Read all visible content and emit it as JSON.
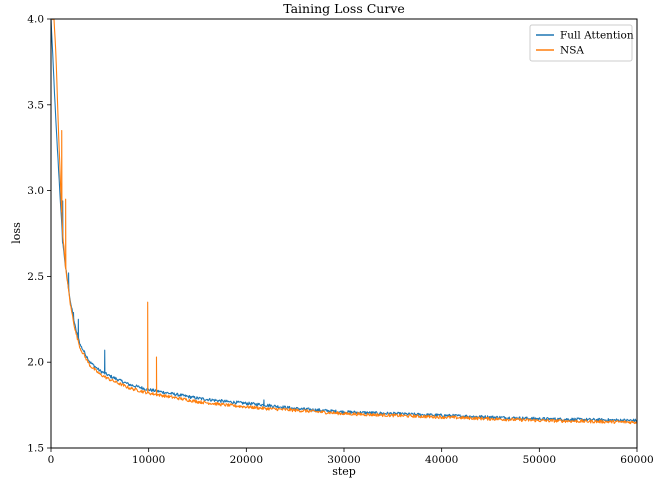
{
  "chart_data": {
    "type": "line",
    "title": "Taining Loss Curve",
    "xlabel": "step",
    "ylabel": "loss",
    "xlim": [
      0,
      60000
    ],
    "ylim": [
      1.5,
      4.0
    ],
    "xticks": [
      0,
      10000,
      20000,
      30000,
      40000,
      50000,
      60000
    ],
    "xtick_labels": [
      "0",
      "10000",
      "20000",
      "30000",
      "40000",
      "50000",
      "60000"
    ],
    "yticks": [
      1.5,
      2.0,
      2.5,
      3.0,
      3.5,
      4.0
    ],
    "ytick_labels": [
      "1.5",
      "2.0",
      "2.5",
      "3.0",
      "3.5",
      "4.0"
    ],
    "grid": false,
    "legend_position": "top-right",
    "series": [
      {
        "name": "Full Attention",
        "color": "#1f77b4",
        "x": [
          0,
          500,
          1000,
          1200,
          1500,
          2000,
          2500,
          3000,
          4000,
          5000,
          6000,
          8000,
          10000,
          12000,
          15000,
          18000,
          20000,
          22000,
          25000,
          30000,
          35000,
          40000,
          45000,
          50000,
          55000,
          60000
        ],
        "y": [
          4.0,
          3.4,
          2.9,
          2.7,
          2.55,
          2.35,
          2.2,
          2.1,
          2.0,
          1.95,
          1.92,
          1.87,
          1.84,
          1.82,
          1.79,
          1.77,
          1.76,
          1.75,
          1.73,
          1.71,
          1.7,
          1.69,
          1.68,
          1.67,
          1.665,
          1.66
        ],
        "spikes": [
          [
            1200,
            2.94
          ],
          [
            1800,
            2.52
          ],
          [
            2300,
            2.29
          ],
          [
            2800,
            2.25
          ],
          [
            5500,
            2.07
          ],
          [
            21800,
            1.78
          ]
        ]
      },
      {
        "name": "NSA",
        "color": "#ff7f0e",
        "x": [
          0,
          300,
          500,
          800,
          1000,
          1200,
          1500,
          2000,
          2500,
          3000,
          4000,
          5000,
          6000,
          8000,
          10000,
          12000,
          15000,
          18000,
          20000,
          22000,
          25000,
          30000,
          35000,
          40000,
          45000,
          50000,
          55000,
          60000
        ],
        "y": [
          4.0,
          4.0,
          3.8,
          3.3,
          3.0,
          2.75,
          2.55,
          2.33,
          2.18,
          2.08,
          1.98,
          1.93,
          1.9,
          1.85,
          1.82,
          1.8,
          1.77,
          1.75,
          1.74,
          1.73,
          1.72,
          1.7,
          1.69,
          1.68,
          1.67,
          1.66,
          1.655,
          1.65
        ],
        "spikes": [
          [
            1100,
            3.35
          ],
          [
            1500,
            2.95
          ],
          [
            9900,
            2.35
          ],
          [
            10800,
            2.03
          ]
        ]
      }
    ]
  }
}
